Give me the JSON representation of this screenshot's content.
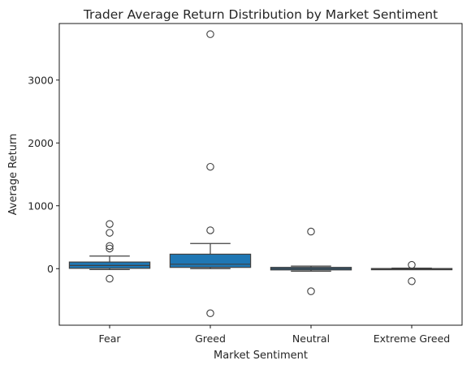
{
  "chart_data": {
    "type": "box",
    "title": "Trader Average Return Distribution by Market Sentiment",
    "xlabel": "Market Sentiment",
    "ylabel": "Average Return",
    "categories": [
      "Fear",
      "Greed",
      "Neutral",
      "Extreme Greed"
    ],
    "ylim": [
      -900,
      3900
    ],
    "yticks": [
      0,
      1000,
      2000,
      3000
    ],
    "box_color": "#1f77b4",
    "line_color": "#3f3f3f",
    "boxes": [
      {
        "category": "Fear",
        "whisker_low": -15,
        "q1": 5,
        "median": 50,
        "q3": 105,
        "whisker_high": 200,
        "outliers": [
          710,
          570,
          360,
          320,
          -160
        ]
      },
      {
        "category": "Greed",
        "whisker_low": 0,
        "q1": 20,
        "median": 70,
        "q3": 230,
        "whisker_high": 400,
        "outliers": [
          3730,
          1620,
          610,
          -710
        ]
      },
      {
        "category": "Neutral",
        "whisker_low": -40,
        "q1": -20,
        "median": 0,
        "q3": 20,
        "whisker_high": 40,
        "outliers": [
          590,
          -360
        ]
      },
      {
        "category": "Extreme Greed",
        "whisker_low": -12,
        "q1": -8,
        "median": -2,
        "q3": 2,
        "whisker_high": 8,
        "outliers": [
          60,
          -200
        ]
      }
    ]
  }
}
